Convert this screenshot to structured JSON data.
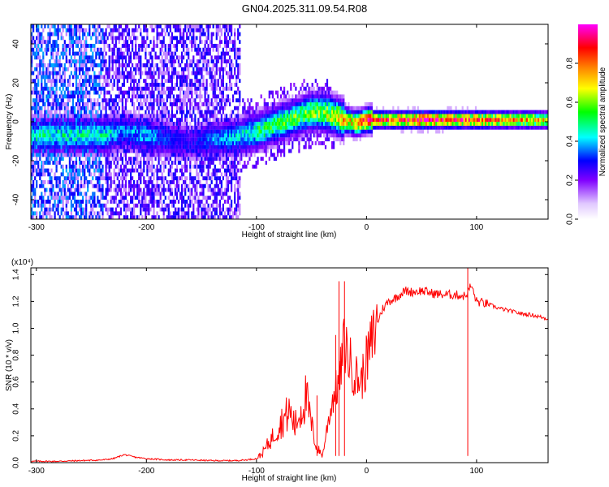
{
  "title": "GN04.2025.311.09.54.R08",
  "colors": {
    "signal": "#ff0000",
    "axis": "#000000",
    "heatmap_low": "#ffffff",
    "heatmap_high": "#ff0000"
  },
  "chart_data": [
    {
      "type": "heatmap",
      "name": "spectrogram",
      "xlabel": "Height of straight line (km)",
      "ylabel": "Frequency (Hz)",
      "xlim": [
        -305,
        165
      ],
      "ylim": [
        -50,
        50
      ],
      "xticks": [
        -300,
        -200,
        -100,
        0,
        100
      ],
      "yticks": [
        -40,
        -20,
        0,
        20,
        40
      ],
      "colorbar": {
        "label": "Normalized spectral amplitude",
        "range": [
          0,
          1
        ],
        "ticks": [
          0.0,
          0.2,
          0.4,
          0.6,
          0.8
        ],
        "colormap": [
          "#ffffff",
          "#8000ff",
          "#0000ff",
          "#00ffff",
          "#00ff00",
          "#ffff00",
          "#ff8000",
          "#ff0000",
          "#ff00ff"
        ]
      },
      "ridge": {
        "x": [
          -240,
          -220,
          -200,
          -180,
          -160,
          -140,
          -120,
          -100,
          -80,
          -60,
          -50,
          -40,
          -30,
          -20,
          -10,
          0,
          20,
          50,
          80,
          100,
          130,
          165
        ],
        "frequency": [
          -8,
          -6,
          -8,
          -10,
          -12,
          -10,
          -9,
          -6,
          -2,
          2,
          4,
          4,
          2,
          0,
          -2,
          0,
          0,
          0,
          0,
          0,
          0,
          0
        ],
        "peak_amplitude": [
          0.4,
          0.3,
          0.35,
          0.25,
          0.2,
          0.3,
          0.35,
          0.45,
          0.5,
          0.5,
          0.55,
          0.55,
          0.6,
          0.7,
          0.7,
          0.85,
          0.8,
          0.95,
          0.85,
          0.8,
          0.75,
          0.65
        ]
      },
      "noise_region_km": [
        -305,
        -115
      ]
    },
    {
      "type": "line",
      "name": "snr",
      "xlabel": "Height of straight line (km)",
      "ylabel": "SNR (10 * v/v)",
      "yscale_label": "(x10⁴)",
      "xlim": [
        -305,
        165
      ],
      "ylim": [
        0,
        1.45
      ],
      "xticks": [
        -300,
        -200,
        -100,
        0,
        100
      ],
      "yticks": [
        0.0,
        0.2,
        0.4,
        0.6,
        0.8,
        1.0,
        1.2,
        1.4
      ],
      "series": [
        {
          "name": "SNR",
          "x": [
            -305,
            -280,
            -260,
            -240,
            -230,
            -220,
            -210,
            -200,
            -180,
            -160,
            -140,
            -120,
            -110,
            -100,
            -95,
            -90,
            -85,
            -80,
            -75,
            -70,
            -65,
            -60,
            -55,
            -50,
            -45,
            -40,
            -35,
            -30,
            -25,
            -20,
            -15,
            -10,
            -5,
            0,
            5,
            10,
            15,
            20,
            25,
            30,
            35,
            40,
            50,
            60,
            70,
            80,
            90,
            95,
            100,
            110,
            120,
            130,
            140,
            150,
            160,
            165
          ],
          "y": [
            0.01,
            0.01,
            0.015,
            0.02,
            0.03,
            0.06,
            0.04,
            0.03,
            0.02,
            0.02,
            0.015,
            0.015,
            0.02,
            0.03,
            0.06,
            0.12,
            0.18,
            0.25,
            0.3,
            0.35,
            0.25,
            0.35,
            0.45,
            0.25,
            0.1,
            0.05,
            0.3,
            0.5,
            0.6,
            0.9,
            0.75,
            0.65,
            0.6,
            0.75,
            0.9,
            1.05,
            1.15,
            1.2,
            1.22,
            1.25,
            1.28,
            1.27,
            1.28,
            1.26,
            1.25,
            1.25,
            1.24,
            1.32,
            1.2,
            1.18,
            1.15,
            1.13,
            1.11,
            1.1,
            1.08,
            1.07
          ]
        }
      ],
      "spikes": [
        {
          "x": -45,
          "y": 0.5
        },
        {
          "x": -28,
          "y": 0.95
        },
        {
          "x": -25,
          "y": 1.35
        },
        {
          "x": -20,
          "y": 1.35
        },
        {
          "x": 92,
          "y": 1.45
        }
      ]
    }
  ]
}
